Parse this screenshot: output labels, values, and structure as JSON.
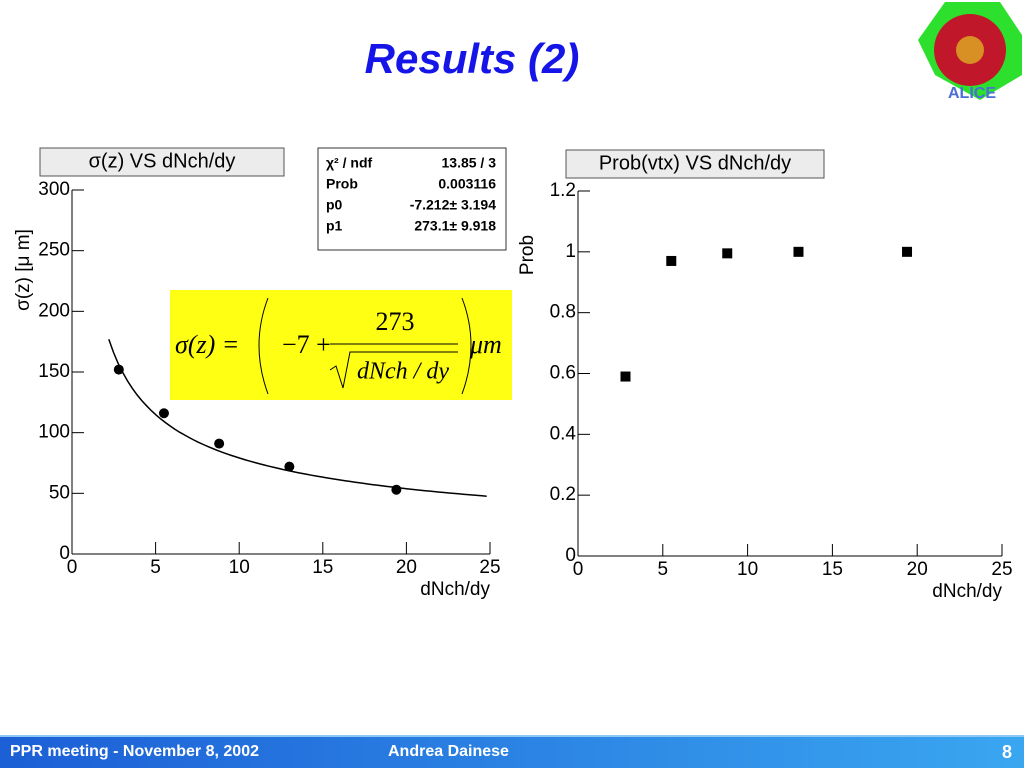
{
  "header": {
    "title": "Results (2)",
    "logo_text": "ALICE"
  },
  "chart_data": [
    {
      "type": "scatter",
      "title": "σ(z) VS dNch/dy",
      "x_label": "dNch/dy",
      "y_label": "σ(z) [μ m]",
      "marker": "circle",
      "color": "#000000",
      "x": [
        2.8,
        5.5,
        8.8,
        13.0,
        19.4
      ],
      "values": [
        152,
        116,
        91,
        72,
        53
      ],
      "xlim": [
        0,
        25
      ],
      "ylim": [
        0,
        300
      ],
      "xticks": [
        0,
        5,
        10,
        15,
        20,
        25
      ],
      "yticks": [
        0,
        50,
        100,
        150,
        200,
        250,
        300
      ],
      "fit": {
        "p0": -7.212,
        "p1": 273.1,
        "range": [
          2.2,
          24.8
        ]
      },
      "stats": [
        {
          "label": "χ² / ndf",
          "value": "13.85 / 3"
        },
        {
          "label": "Prob",
          "value": "0.003116"
        },
        {
          "label": "p0",
          "value": "-7.212± 3.194"
        },
        {
          "label": "p1",
          "value": "273.1± 9.918"
        }
      ],
      "formula": {
        "lhs": "σ(z) =",
        "const": "−7 +",
        "numerator": "273",
        "denominator": "dNch / dy",
        "unit": "μm"
      }
    },
    {
      "type": "scatter",
      "title": "Prob(vtx) VS dNch/dy",
      "x_label": "dNch/dy",
      "y_label": "Prob",
      "marker": "square",
      "color": "#000000",
      "x": [
        2.8,
        5.5,
        8.8,
        13.0,
        19.4
      ],
      "values": [
        0.59,
        0.97,
        0.995,
        1.0,
        1.0
      ],
      "xlim": [
        0,
        25
      ],
      "ylim": [
        0,
        1.2
      ],
      "xticks": [
        0,
        5,
        10,
        15,
        20,
        25
      ],
      "yticks": [
        0,
        0.2,
        0.4,
        0.6,
        0.8,
        1,
        1.2
      ]
    }
  ],
  "footer": {
    "meeting": "PPR meeting - November 8, 2002",
    "author": "Andrea Dainese",
    "page": "8"
  }
}
